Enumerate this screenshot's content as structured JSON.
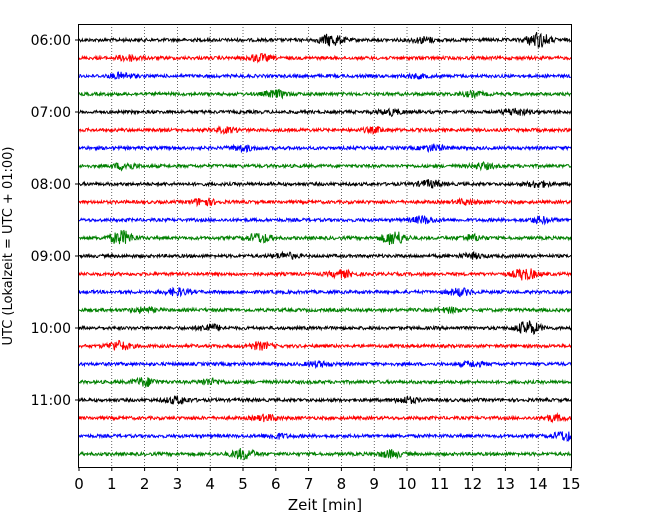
{
  "chart_data": {
    "type": "line",
    "xlabel": "Zeit  [min]",
    "ylabel": "UTC (Lokalzeit = UTC + 01:00)",
    "xlim": [
      0,
      15
    ],
    "x_ticks": [
      0,
      1,
      2,
      3,
      4,
      5,
      6,
      7,
      8,
      9,
      10,
      11,
      12,
      13,
      14,
      15
    ],
    "x_grid": "vertical dotted at each minute",
    "y_ticks": [
      "06:00",
      "07:00",
      "08:00",
      "09:00",
      "10:00",
      "11:00"
    ],
    "trace_interval_min": 15,
    "first_trace": "06:00",
    "last_trace": "11:45",
    "trace_count": 24,
    "color_cycle": [
      "#000000",
      "#ff0000",
      "#0000ff",
      "#008000"
    ],
    "bursts": [
      [
        {
          "x": 7.7,
          "a": 1.0
        },
        {
          "x": 14.0,
          "a": 1.3
        },
        {
          "x": 10.5,
          "a": 0.5
        }
      ],
      [
        {
          "x": 1.5,
          "a": 0.5
        },
        {
          "x": 5.5,
          "a": 0.6
        }
      ],
      [
        {
          "x": 1.3,
          "a": 0.5
        },
        {
          "x": 10.3,
          "a": 0.3
        }
      ],
      [
        {
          "x": 6.0,
          "a": 0.6
        },
        {
          "x": 12.0,
          "a": 0.4
        }
      ],
      [
        {
          "x": 9.5,
          "a": 0.5
        },
        {
          "x": 13.3,
          "a": 0.6
        }
      ],
      [
        {
          "x": 4.5,
          "a": 0.4
        },
        {
          "x": 9.0,
          "a": 0.4
        }
      ],
      [
        {
          "x": 5.0,
          "a": 0.5
        },
        {
          "x": 10.8,
          "a": 0.5
        }
      ],
      [
        {
          "x": 1.4,
          "a": 0.6
        },
        {
          "x": 12.3,
          "a": 0.5
        }
      ],
      [
        {
          "x": 10.7,
          "a": 0.6
        },
        {
          "x": 14.0,
          "a": 0.5
        }
      ],
      [
        {
          "x": 3.8,
          "a": 0.6
        },
        {
          "x": 11.8,
          "a": 0.4
        }
      ],
      [
        {
          "x": 10.5,
          "a": 0.6
        },
        {
          "x": 14.1,
          "a": 0.5
        }
      ],
      [
        {
          "x": 1.3,
          "a": 1.2
        },
        {
          "x": 5.5,
          "a": 0.8
        },
        {
          "x": 9.6,
          "a": 1.2
        },
        {
          "x": 12.0,
          "a": 0.5
        }
      ],
      [
        {
          "x": 6.3,
          "a": 0.5
        },
        {
          "x": 12.0,
          "a": 0.4
        }
      ],
      [
        {
          "x": 8.0,
          "a": 0.6
        },
        {
          "x": 13.6,
          "a": 1.0
        }
      ],
      [
        {
          "x": 3.0,
          "a": 0.6
        },
        {
          "x": 11.6,
          "a": 0.6
        }
      ],
      [
        {
          "x": 2.0,
          "a": 0.4
        },
        {
          "x": 11.3,
          "a": 0.4
        }
      ],
      [
        {
          "x": 4.0,
          "a": 0.6
        },
        {
          "x": 13.7,
          "a": 1.2
        }
      ],
      [
        {
          "x": 1.2,
          "a": 0.8
        },
        {
          "x": 5.5,
          "a": 0.6
        }
      ],
      [
        {
          "x": 7.3,
          "a": 0.4
        },
        {
          "x": 12.0,
          "a": 0.4
        }
      ],
      [
        {
          "x": 2.0,
          "a": 0.7
        },
        {
          "x": 4.0,
          "a": 0.5
        }
      ],
      [
        {
          "x": 3.0,
          "a": 0.6
        },
        {
          "x": 10.0,
          "a": 0.5
        }
      ],
      [
        {
          "x": 5.7,
          "a": 0.5
        },
        {
          "x": 14.5,
          "a": 0.5
        }
      ],
      [
        {
          "x": 6.0,
          "a": 0.4
        },
        {
          "x": 14.8,
          "a": 0.8
        }
      ],
      [
        {
          "x": 5.0,
          "a": 0.9
        },
        {
          "x": 9.5,
          "a": 0.6
        }
      ]
    ]
  }
}
